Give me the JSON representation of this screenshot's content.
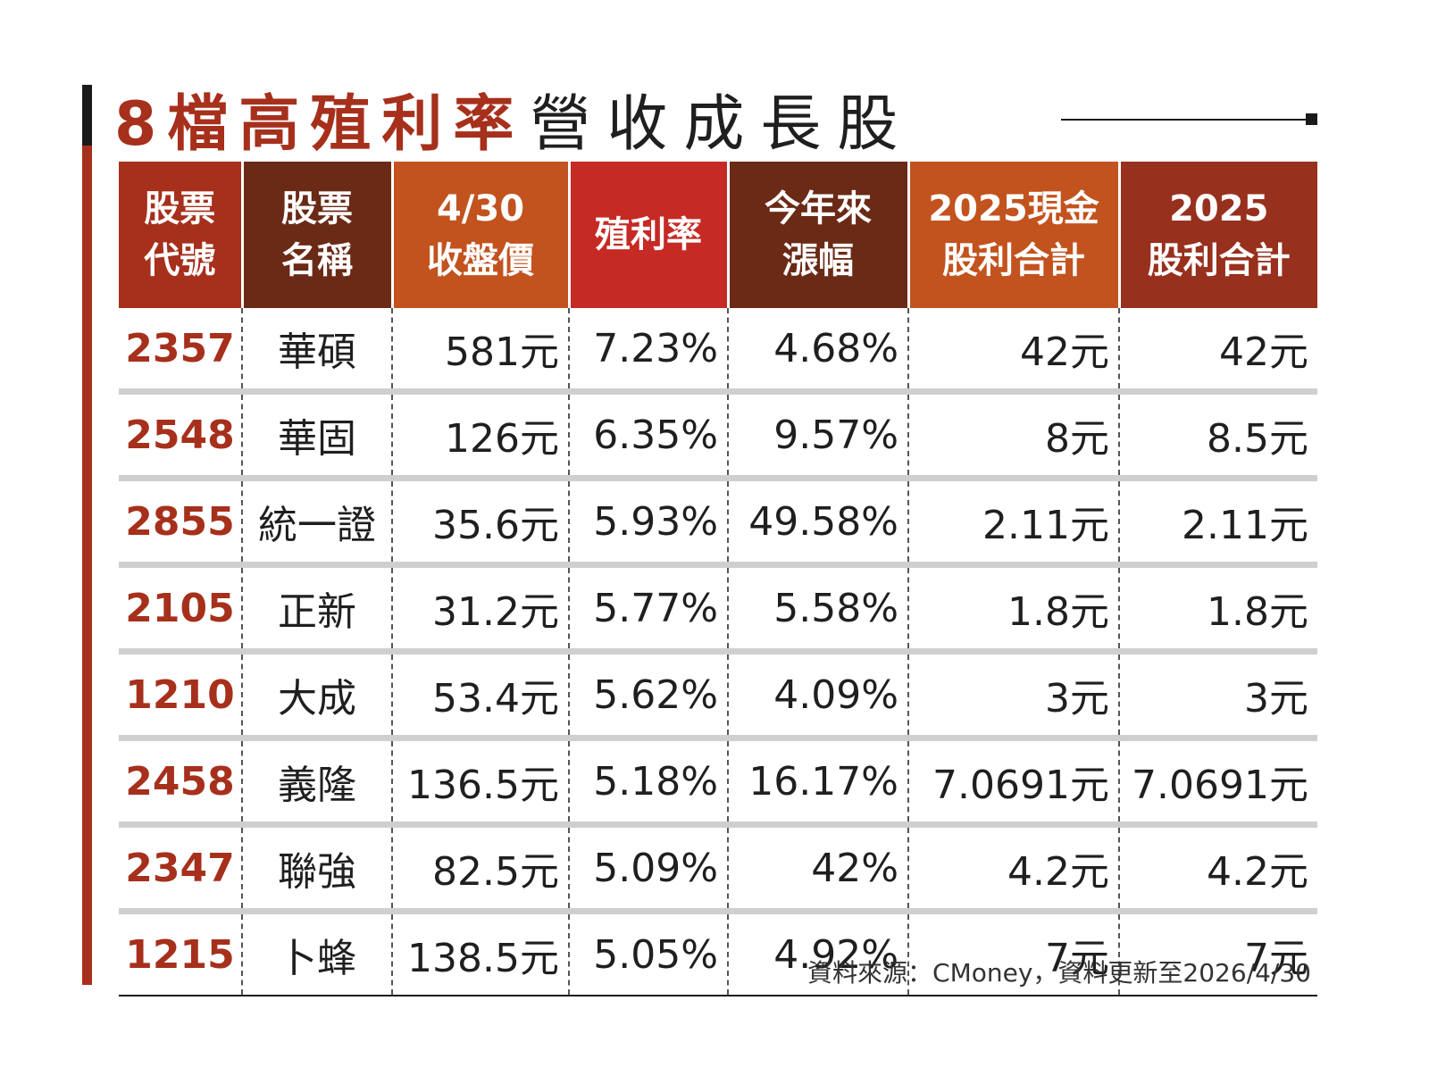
{
  "title": {
    "highlight": "8檔高殖利率",
    "rest": "營收成長股"
  },
  "colors": {
    "brand_red": "#a6301c",
    "brown": "#6a2a16",
    "orange": "#c2531e",
    "red": "#c62a25",
    "rust": "#98301e"
  },
  "table": {
    "columns": [
      {
        "line1": "股票",
        "line2": "代號",
        "color": "#a6301c"
      },
      {
        "line1": "股票",
        "line2": "名稱",
        "color": "#6a2a16"
      },
      {
        "line1": "4/30",
        "line2": "收盤價",
        "color": "#c2531e"
      },
      {
        "line1": "殖利率",
        "line2": "",
        "color": "#c62a25"
      },
      {
        "line1": "今年來",
        "line2": "漲幅",
        "color": "#6a2a16"
      },
      {
        "line1": "2025現金",
        "line2": "股利合計",
        "color": "#c2531e"
      },
      {
        "line1": "2025",
        "line2": "股利合計",
        "color": "#98301e"
      }
    ],
    "rows": [
      {
        "code": "2357",
        "name": "華碩",
        "price": "581元",
        "yield": "7.23%",
        "ytd": "4.68%",
        "cash_div": "42元",
        "total_div": "42元"
      },
      {
        "code": "2548",
        "name": "華固",
        "price": "126元",
        "yield": "6.35%",
        "ytd": "9.57%",
        "cash_div": "8元",
        "total_div": "8.5元"
      },
      {
        "code": "2855",
        "name": "統一證",
        "price": "35.6元",
        "yield": "5.93%",
        "ytd": "49.58%",
        "cash_div": "2.11元",
        "total_div": "2.11元"
      },
      {
        "code": "2105",
        "name": "正新",
        "price": "31.2元",
        "yield": "5.77%",
        "ytd": "5.58%",
        "cash_div": "1.8元",
        "total_div": "1.8元"
      },
      {
        "code": "1210",
        "name": "大成",
        "price": "53.4元",
        "yield": "5.62%",
        "ytd": "4.09%",
        "cash_div": "3元",
        "total_div": "3元"
      },
      {
        "code": "2458",
        "name": "義隆",
        "price": "136.5元",
        "yield": "5.18%",
        "ytd": "16.17%",
        "cash_div": "7.0691元",
        "total_div": "7.0691元"
      },
      {
        "code": "2347",
        "name": "聯強",
        "price": "82.5元",
        "yield": "5.09%",
        "ytd": "42%",
        "cash_div": "4.2元",
        "total_div": "4.2元"
      },
      {
        "code": "1215",
        "name": "卜蜂",
        "price": "138.5元",
        "yield": "5.05%",
        "ytd": "4.92%",
        "cash_div": "7元",
        "total_div": "7元"
      }
    ]
  },
  "source": "資料來源：CMoney，資料更新至2026/4/30",
  "chart_data": {
    "type": "table",
    "title": "8檔高殖利率營收成長股",
    "headers": [
      "股票代號",
      "股票名稱",
      "4/30收盤價",
      "殖利率",
      "今年來漲幅",
      "2025現金股利合計",
      "2025股利合計"
    ],
    "rows": [
      [
        "2357",
        "華碩",
        "581元",
        "7.23%",
        "4.68%",
        "42元",
        "42元"
      ],
      [
        "2548",
        "華固",
        "126元",
        "6.35%",
        "9.57%",
        "8元",
        "8.5元"
      ],
      [
        "2855",
        "統一證",
        "35.6元",
        "5.93%",
        "49.58%",
        "2.11元",
        "2.11元"
      ],
      [
        "2105",
        "正新",
        "31.2元",
        "5.77%",
        "5.58%",
        "1.8元",
        "1.8元"
      ],
      [
        "1210",
        "大成",
        "53.4元",
        "5.62%",
        "4.09%",
        "3元",
        "3元"
      ],
      [
        "2458",
        "義隆",
        "136.5元",
        "5.18%",
        "16.17%",
        "7.0691元",
        "7.0691元"
      ],
      [
        "2347",
        "聯強",
        "82.5元",
        "5.09%",
        "42%",
        "4.2元",
        "4.2元"
      ],
      [
        "1215",
        "卜蜂",
        "138.5元",
        "5.05%",
        "4.92%",
        "7元",
        "7元"
      ]
    ],
    "source": "資料來源：CMoney，資料更新至2026/4/30"
  }
}
